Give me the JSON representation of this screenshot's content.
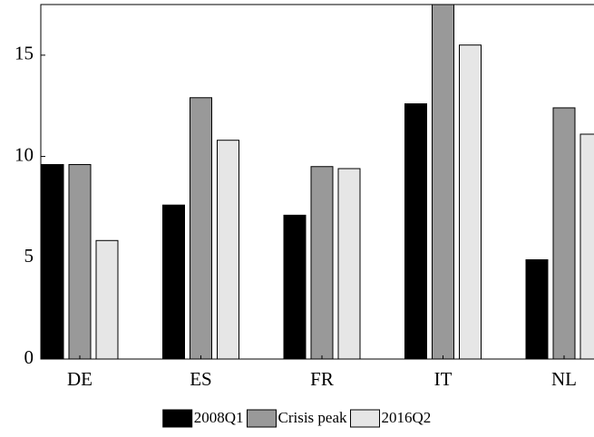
{
  "chart_data": {
    "type": "bar",
    "categories": [
      "DE",
      "ES",
      "FR",
      "IT",
      "NL"
    ],
    "series": [
      {
        "name": "2008Q1",
        "color": "#000000",
        "values": [
          9.6,
          7.6,
          7.1,
          12.6,
          4.9
        ]
      },
      {
        "name": "Crisis peak",
        "color": "#999999",
        "values": [
          9.6,
          12.9,
          9.5,
          17.5,
          12.4
        ]
      },
      {
        "name": "2016Q2",
        "color": "#e6e6e6",
        "values": [
          5.85,
          10.8,
          9.4,
          15.5,
          11.1
        ]
      }
    ],
    "ylim": [
      0,
      17.5
    ],
    "yticks": [
      0,
      5,
      10,
      15
    ],
    "grid": false,
    "legend": "bottom"
  }
}
